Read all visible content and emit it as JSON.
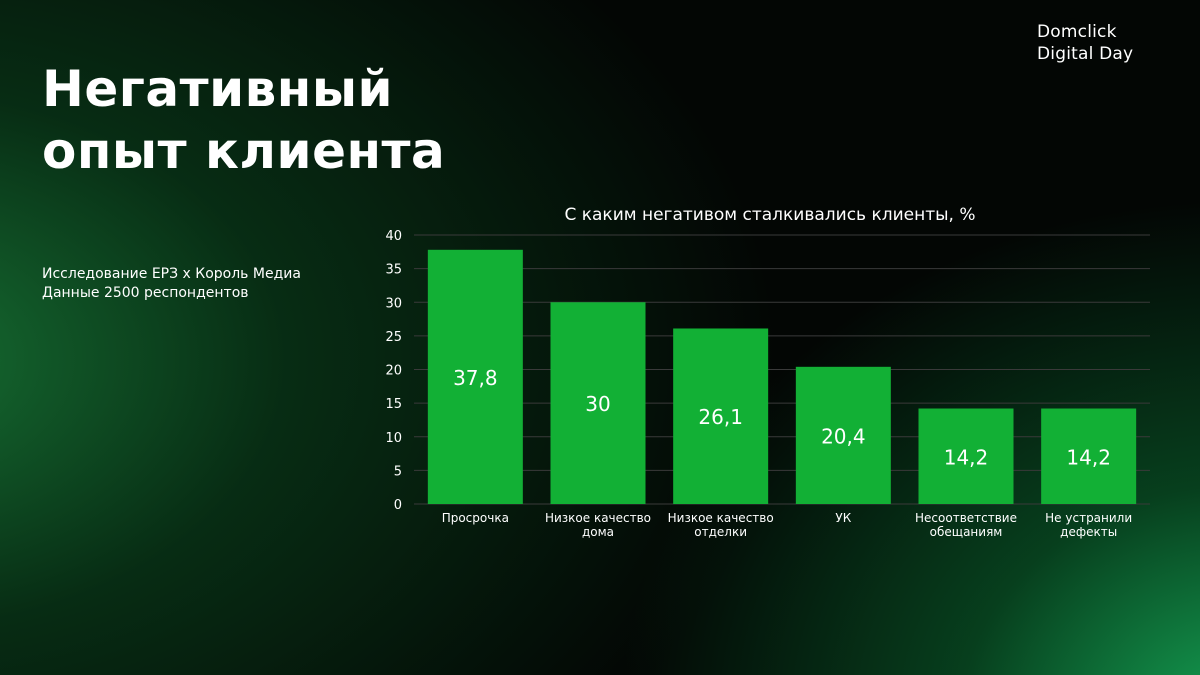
{
  "brand": {
    "line1": "Domclick",
    "line2": "Digital Day"
  },
  "title": {
    "line1": "Негативный",
    "line2": "опыт клиента"
  },
  "source": {
    "line1": "Исследование ЕРЗ x Король Медиа",
    "line2": "Данные 2500 респондентов"
  },
  "colors": {
    "bar": "#12b035",
    "gridline": "#3a3a3a",
    "text": "#ffffff"
  },
  "chart_data": {
    "type": "bar",
    "title": "С каким негативом сталкивались клиенты, %",
    "categories": [
      [
        "Просрочка"
      ],
      [
        "Низкое качество",
        "дома"
      ],
      [
        "Низкое качество",
        "отделки"
      ],
      [
        "УК"
      ],
      [
        "Несоответствие",
        "обещаниям"
      ],
      [
        "Не устранили",
        "дефекты"
      ]
    ],
    "values": [
      37.8,
      30,
      26.1,
      20.4,
      14.2,
      14.2
    ],
    "value_labels": [
      "37,8",
      "30",
      "26,1",
      "20,4",
      "14,2",
      "14,2"
    ],
    "ylim": [
      0,
      40
    ],
    "yticks": [
      0,
      5,
      10,
      15,
      20,
      25,
      30,
      35,
      40
    ],
    "grid": true,
    "legend": "none"
  }
}
